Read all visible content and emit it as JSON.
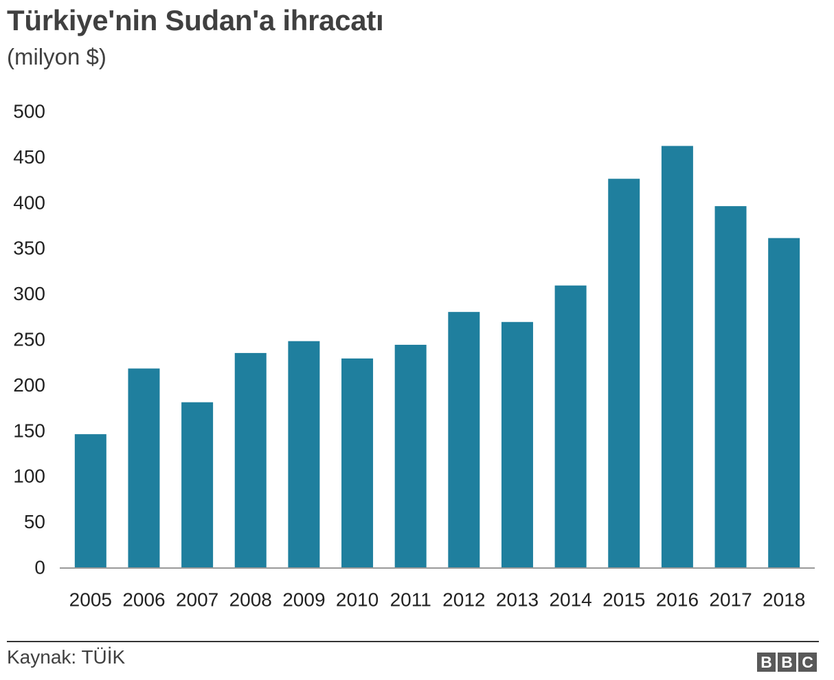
{
  "chart_data": {
    "type": "bar",
    "title": "Türkiye'nin Sudan'a ihracatı",
    "subtitle": "(milyon $)",
    "categories": [
      "2005",
      "2006",
      "2007",
      "2008",
      "2009",
      "2010",
      "2011",
      "2012",
      "2013",
      "2014",
      "2015",
      "2016",
      "2017",
      "2018"
    ],
    "values": [
      146,
      218,
      181,
      235,
      248,
      229,
      244,
      280,
      269,
      309,
      426,
      462,
      396,
      361
    ],
    "ylim": [
      0,
      500
    ],
    "yticks": [
      0,
      50,
      100,
      150,
      200,
      250,
      300,
      350,
      400,
      450,
      500
    ],
    "xlabel": "",
    "ylabel": "",
    "grid": false,
    "bar_color": "#1f7f9e"
  },
  "footer": {
    "source": "Kaynak: TÜİK",
    "logo_letters": [
      "B",
      "B",
      "C"
    ]
  }
}
